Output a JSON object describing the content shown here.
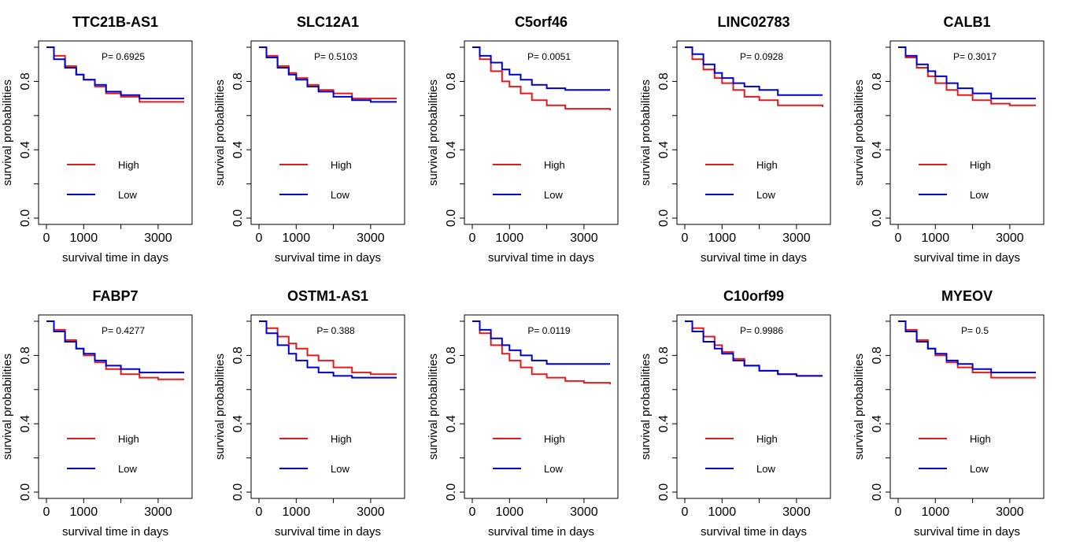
{
  "chart_data": [
    {
      "type": "line",
      "title": "TTC21B-AS1",
      "pvalue": "P= 0.6925",
      "xlabel": "survival time in days",
      "ylabel": "survival probabilities",
      "xlim": [
        0,
        3700
      ],
      "ylim": [
        0,
        1.0
      ],
      "xticks": [
        0,
        1000,
        2000,
        3000
      ],
      "xticklabels": [
        "0",
        "1000",
        "",
        "3000"
      ],
      "yticks": [
        0.0,
        0.2,
        0.4,
        0.6,
        0.8,
        1.0
      ],
      "yticklabels": [
        "0.0",
        "",
        "0.4",
        "",
        "0.8",
        ""
      ],
      "legend_position": "center-left",
      "series": [
        {
          "name": "High",
          "color": "#e31a1c",
          "x": [
            0,
            200,
            500,
            800,
            1000,
            1300,
            1600,
            2000,
            2500,
            3000,
            3500,
            3700
          ],
          "y": [
            1.0,
            0.95,
            0.89,
            0.84,
            0.81,
            0.77,
            0.73,
            0.71,
            0.68,
            0.68,
            0.68,
            0.68
          ]
        },
        {
          "name": "Low",
          "color": "#0000cc",
          "x": [
            0,
            200,
            500,
            800,
            1000,
            1300,
            1600,
            2000,
            2500,
            3000,
            3500,
            3700
          ],
          "y": [
            1.0,
            0.93,
            0.88,
            0.84,
            0.81,
            0.78,
            0.74,
            0.72,
            0.7,
            0.7,
            0.7,
            0.7
          ]
        }
      ]
    },
    {
      "type": "line",
      "title": "SLC12A1",
      "pvalue": "P= 0.5103",
      "xlabel": "survival time in days",
      "ylabel": "survival probabilities",
      "xlim": [
        0,
        3700
      ],
      "ylim": [
        0,
        1.0
      ],
      "xticks": [
        0,
        1000,
        2000,
        3000
      ],
      "xticklabels": [
        "0",
        "1000",
        "",
        "3000"
      ],
      "yticks": [
        0.0,
        0.2,
        0.4,
        0.6,
        0.8,
        1.0
      ],
      "yticklabels": [
        "0.0",
        "",
        "0.4",
        "",
        "0.8",
        ""
      ],
      "legend_position": "center-left",
      "series": [
        {
          "name": "High",
          "color": "#e31a1c",
          "x": [
            0,
            200,
            500,
            800,
            1000,
            1300,
            1600,
            2000,
            2500,
            3000,
            3500,
            3700
          ],
          "y": [
            1.0,
            0.95,
            0.89,
            0.85,
            0.82,
            0.78,
            0.75,
            0.73,
            0.7,
            0.7,
            0.7,
            0.7
          ]
        },
        {
          "name": "Low",
          "color": "#0000cc",
          "x": [
            0,
            200,
            500,
            800,
            1000,
            1300,
            1600,
            2000,
            2500,
            3000,
            3500,
            3700
          ],
          "y": [
            1.0,
            0.94,
            0.88,
            0.84,
            0.81,
            0.77,
            0.74,
            0.71,
            0.69,
            0.68,
            0.68,
            0.68
          ]
        }
      ]
    },
    {
      "type": "line",
      "title": "C5orf46",
      "pvalue": "P= 0.0051",
      "xlabel": "survival time in days",
      "ylabel": "survival probabilities",
      "xlim": [
        0,
        3700
      ],
      "ylim": [
        0,
        1.0
      ],
      "xticks": [
        0,
        1000,
        2000,
        3000
      ],
      "xticklabels": [
        "0",
        "1000",
        "",
        "3000"
      ],
      "yticks": [
        0.0,
        0.2,
        0.4,
        0.6,
        0.8,
        1.0
      ],
      "yticklabels": [
        "0.0",
        "",
        "0.4",
        "",
        "0.8",
        ""
      ],
      "legend_position": "center-left",
      "series": [
        {
          "name": "High",
          "color": "#e31a1c",
          "x": [
            0,
            200,
            500,
            800,
            1000,
            1300,
            1600,
            2000,
            2500,
            3000,
            3500,
            3700
          ],
          "y": [
            1.0,
            0.93,
            0.86,
            0.8,
            0.77,
            0.73,
            0.69,
            0.66,
            0.64,
            0.64,
            0.64,
            0.63
          ]
        },
        {
          "name": "Low",
          "color": "#0000cc",
          "x": [
            0,
            200,
            500,
            800,
            1000,
            1300,
            1600,
            2000,
            2500,
            3000,
            3500,
            3700
          ],
          "y": [
            1.0,
            0.95,
            0.91,
            0.87,
            0.84,
            0.81,
            0.78,
            0.76,
            0.75,
            0.75,
            0.75,
            0.75
          ]
        }
      ]
    },
    {
      "type": "line",
      "title": "LINC02783",
      "pvalue": "P= 0.0928",
      "xlabel": "survival time in days",
      "ylabel": "survival probabilities",
      "xlim": [
        0,
        3700
      ],
      "ylim": [
        0,
        1.0
      ],
      "xticks": [
        0,
        1000,
        2000,
        3000
      ],
      "xticklabels": [
        "0",
        "1000",
        "",
        "3000"
      ],
      "yticks": [
        0.0,
        0.2,
        0.4,
        0.6,
        0.8,
        1.0
      ],
      "yticklabels": [
        "0.0",
        "",
        "0.4",
        "",
        "0.8",
        ""
      ],
      "legend_position": "center-left",
      "series": [
        {
          "name": "High",
          "color": "#e31a1c",
          "x": [
            0,
            200,
            500,
            800,
            1000,
            1300,
            1600,
            2000,
            2500,
            3000,
            3500,
            3700
          ],
          "y": [
            1.0,
            0.93,
            0.87,
            0.82,
            0.79,
            0.75,
            0.71,
            0.69,
            0.66,
            0.66,
            0.66,
            0.65
          ]
        },
        {
          "name": "Low",
          "color": "#0000cc",
          "x": [
            0,
            200,
            500,
            800,
            1000,
            1300,
            1600,
            2000,
            2500,
            3000,
            3500,
            3700
          ],
          "y": [
            1.0,
            0.96,
            0.9,
            0.85,
            0.82,
            0.79,
            0.77,
            0.75,
            0.72,
            0.72,
            0.72,
            0.72
          ]
        }
      ]
    },
    {
      "type": "line",
      "title": "CALB1",
      "pvalue": "P= 0.3017",
      "xlabel": "survival time in days",
      "ylabel": "survival probabilities",
      "xlim": [
        0,
        3700
      ],
      "ylim": [
        0,
        1.0
      ],
      "xticks": [
        0,
        1000,
        2000,
        3000
      ],
      "xticklabels": [
        "0",
        "1000",
        "",
        "3000"
      ],
      "yticks": [
        0.0,
        0.2,
        0.4,
        0.6,
        0.8,
        1.0
      ],
      "yticklabels": [
        "0.0",
        "",
        "0.4",
        "",
        "0.8",
        ""
      ],
      "legend_position": "center-left",
      "series": [
        {
          "name": "High",
          "color": "#e31a1c",
          "x": [
            0,
            200,
            500,
            800,
            1000,
            1300,
            1600,
            2000,
            2500,
            3000,
            3500,
            3700
          ],
          "y": [
            1.0,
            0.94,
            0.88,
            0.83,
            0.79,
            0.75,
            0.72,
            0.69,
            0.67,
            0.66,
            0.66,
            0.66
          ]
        },
        {
          "name": "Low",
          "color": "#0000cc",
          "x": [
            0,
            200,
            500,
            800,
            1000,
            1300,
            1600,
            2000,
            2500,
            3000,
            3500,
            3700
          ],
          "y": [
            1.0,
            0.95,
            0.9,
            0.86,
            0.83,
            0.79,
            0.76,
            0.73,
            0.7,
            0.7,
            0.7,
            0.7
          ]
        }
      ]
    },
    {
      "type": "line",
      "title": "FABP7",
      "pvalue": "P= 0.4277",
      "xlabel": "survival time in days",
      "ylabel": "survival probabilities",
      "xlim": [
        0,
        3700
      ],
      "ylim": [
        0,
        1.0
      ],
      "xticks": [
        0,
        1000,
        2000,
        3000
      ],
      "xticklabels": [
        "0",
        "1000",
        "",
        "3000"
      ],
      "yticks": [
        0.0,
        0.2,
        0.4,
        0.6,
        0.8,
        1.0
      ],
      "yticklabels": [
        "0.0",
        "",
        "0.4",
        "",
        "0.8",
        ""
      ],
      "legend_position": "center-left",
      "series": [
        {
          "name": "High",
          "color": "#e31a1c",
          "x": [
            0,
            200,
            500,
            800,
            1000,
            1300,
            1600,
            2000,
            2500,
            3000,
            3500,
            3700
          ],
          "y": [
            1.0,
            0.95,
            0.89,
            0.84,
            0.8,
            0.76,
            0.72,
            0.69,
            0.67,
            0.66,
            0.66,
            0.66
          ]
        },
        {
          "name": "Low",
          "color": "#0000cc",
          "x": [
            0,
            200,
            500,
            800,
            1000,
            1300,
            1600,
            2000,
            2500,
            3000,
            3500,
            3700
          ],
          "y": [
            1.0,
            0.94,
            0.88,
            0.84,
            0.81,
            0.77,
            0.74,
            0.72,
            0.7,
            0.7,
            0.7,
            0.7
          ]
        }
      ]
    },
    {
      "type": "line",
      "title": "OSTM1-AS1",
      "pvalue": "P= 0.388",
      "xlabel": "survival time in days",
      "ylabel": "survival probabilities",
      "xlim": [
        0,
        3700
      ],
      "ylim": [
        0,
        1.0
      ],
      "xticks": [
        0,
        1000,
        2000,
        3000
      ],
      "xticklabels": [
        "0",
        "1000",
        "",
        "3000"
      ],
      "yticks": [
        0.0,
        0.2,
        0.4,
        0.6,
        0.8,
        1.0
      ],
      "yticklabels": [
        "0.0",
        "",
        "0.4",
        "",
        "0.8",
        ""
      ],
      "legend_position": "center-left",
      "series": [
        {
          "name": "High",
          "color": "#e31a1c",
          "x": [
            0,
            200,
            500,
            800,
            1000,
            1300,
            1600,
            2000,
            2500,
            3000,
            3500,
            3700
          ],
          "y": [
            1.0,
            0.96,
            0.91,
            0.87,
            0.84,
            0.8,
            0.77,
            0.73,
            0.7,
            0.69,
            0.69,
            0.69
          ]
        },
        {
          "name": "Low",
          "color": "#0000cc",
          "x": [
            0,
            200,
            500,
            800,
            1000,
            1300,
            1600,
            2000,
            2500,
            3000,
            3500,
            3700
          ],
          "y": [
            1.0,
            0.93,
            0.86,
            0.81,
            0.77,
            0.73,
            0.7,
            0.68,
            0.67,
            0.67,
            0.67,
            0.67
          ]
        }
      ]
    },
    {
      "type": "line",
      "title": "",
      "pvalue": "P= 0.0119",
      "xlabel": "survival time in days",
      "ylabel": "survival probabilities",
      "xlim": [
        0,
        3700
      ],
      "ylim": [
        0,
        1.0
      ],
      "xticks": [
        0,
        1000,
        2000,
        3000
      ],
      "xticklabels": [
        "0",
        "1000",
        "",
        "3000"
      ],
      "yticks": [
        0.0,
        0.2,
        0.4,
        0.6,
        0.8,
        1.0
      ],
      "yticklabels": [
        "0.0",
        "",
        "0.4",
        "",
        "0.8",
        ""
      ],
      "legend_position": "center-left",
      "series": [
        {
          "name": "High",
          "color": "#e31a1c",
          "x": [
            0,
            200,
            500,
            800,
            1000,
            1300,
            1600,
            2000,
            2500,
            3000,
            3500,
            3700
          ],
          "y": [
            1.0,
            0.93,
            0.86,
            0.81,
            0.77,
            0.73,
            0.69,
            0.67,
            0.65,
            0.64,
            0.64,
            0.63
          ]
        },
        {
          "name": "Low",
          "color": "#0000cc",
          "x": [
            0,
            200,
            500,
            800,
            1000,
            1300,
            1600,
            2000,
            2500,
            3000,
            3500,
            3700
          ],
          "y": [
            1.0,
            0.95,
            0.9,
            0.86,
            0.83,
            0.8,
            0.77,
            0.75,
            0.75,
            0.75,
            0.75,
            0.75
          ]
        }
      ]
    },
    {
      "type": "line",
      "title": "C10orf99",
      "pvalue": "P= 0.9986",
      "xlabel": "survival time in days",
      "ylabel": "survival probabilities",
      "xlim": [
        0,
        3700
      ],
      "ylim": [
        0,
        1.0
      ],
      "xticks": [
        0,
        1000,
        2000,
        3000
      ],
      "xticklabels": [
        "0",
        "1000",
        "",
        "3000"
      ],
      "yticks": [
        0.0,
        0.2,
        0.4,
        0.6,
        0.8,
        1.0
      ],
      "yticklabels": [
        "0.0",
        "",
        "0.4",
        "",
        "0.8",
        ""
      ],
      "legend_position": "center-left",
      "series": [
        {
          "name": "High",
          "color": "#e31a1c",
          "x": [
            0,
            200,
            500,
            800,
            1000,
            1300,
            1600,
            2000,
            2500,
            3000,
            3500,
            3700
          ],
          "y": [
            1.0,
            0.96,
            0.91,
            0.86,
            0.82,
            0.78,
            0.74,
            0.71,
            0.69,
            0.68,
            0.68,
            0.68
          ]
        },
        {
          "name": "Low",
          "color": "#0000cc",
          "x": [
            0,
            200,
            500,
            800,
            1000,
            1300,
            1600,
            2000,
            2500,
            3000,
            3500,
            3700
          ],
          "y": [
            1.0,
            0.94,
            0.88,
            0.84,
            0.81,
            0.77,
            0.74,
            0.71,
            0.69,
            0.68,
            0.68,
            0.68
          ]
        }
      ]
    },
    {
      "type": "line",
      "title": "MYEOV",
      "pvalue": "P= 0.5",
      "xlabel": "survival time in days",
      "ylabel": "survival probabilities",
      "xlim": [
        0,
        3700
      ],
      "ylim": [
        0,
        1.0
      ],
      "xticks": [
        0,
        1000,
        2000,
        3000
      ],
      "xticklabels": [
        "0",
        "1000",
        "",
        "3000"
      ],
      "yticks": [
        0.0,
        0.2,
        0.4,
        0.6,
        0.8,
        1.0
      ],
      "yticklabels": [
        "0.0",
        "",
        "0.4",
        "",
        "0.8",
        ""
      ],
      "legend_position": "center-left",
      "series": [
        {
          "name": "High",
          "color": "#e31a1c",
          "x": [
            0,
            200,
            500,
            800,
            1000,
            1300,
            1600,
            2000,
            2500,
            3000,
            3500,
            3700
          ],
          "y": [
            1.0,
            0.95,
            0.89,
            0.84,
            0.8,
            0.76,
            0.73,
            0.7,
            0.67,
            0.67,
            0.67,
            0.67
          ]
        },
        {
          "name": "Low",
          "color": "#0000cc",
          "x": [
            0,
            200,
            500,
            800,
            1000,
            1300,
            1600,
            2000,
            2500,
            3000,
            3500,
            3700
          ],
          "y": [
            1.0,
            0.94,
            0.88,
            0.84,
            0.81,
            0.77,
            0.75,
            0.72,
            0.7,
            0.7,
            0.7,
            0.7
          ]
        }
      ]
    }
  ]
}
